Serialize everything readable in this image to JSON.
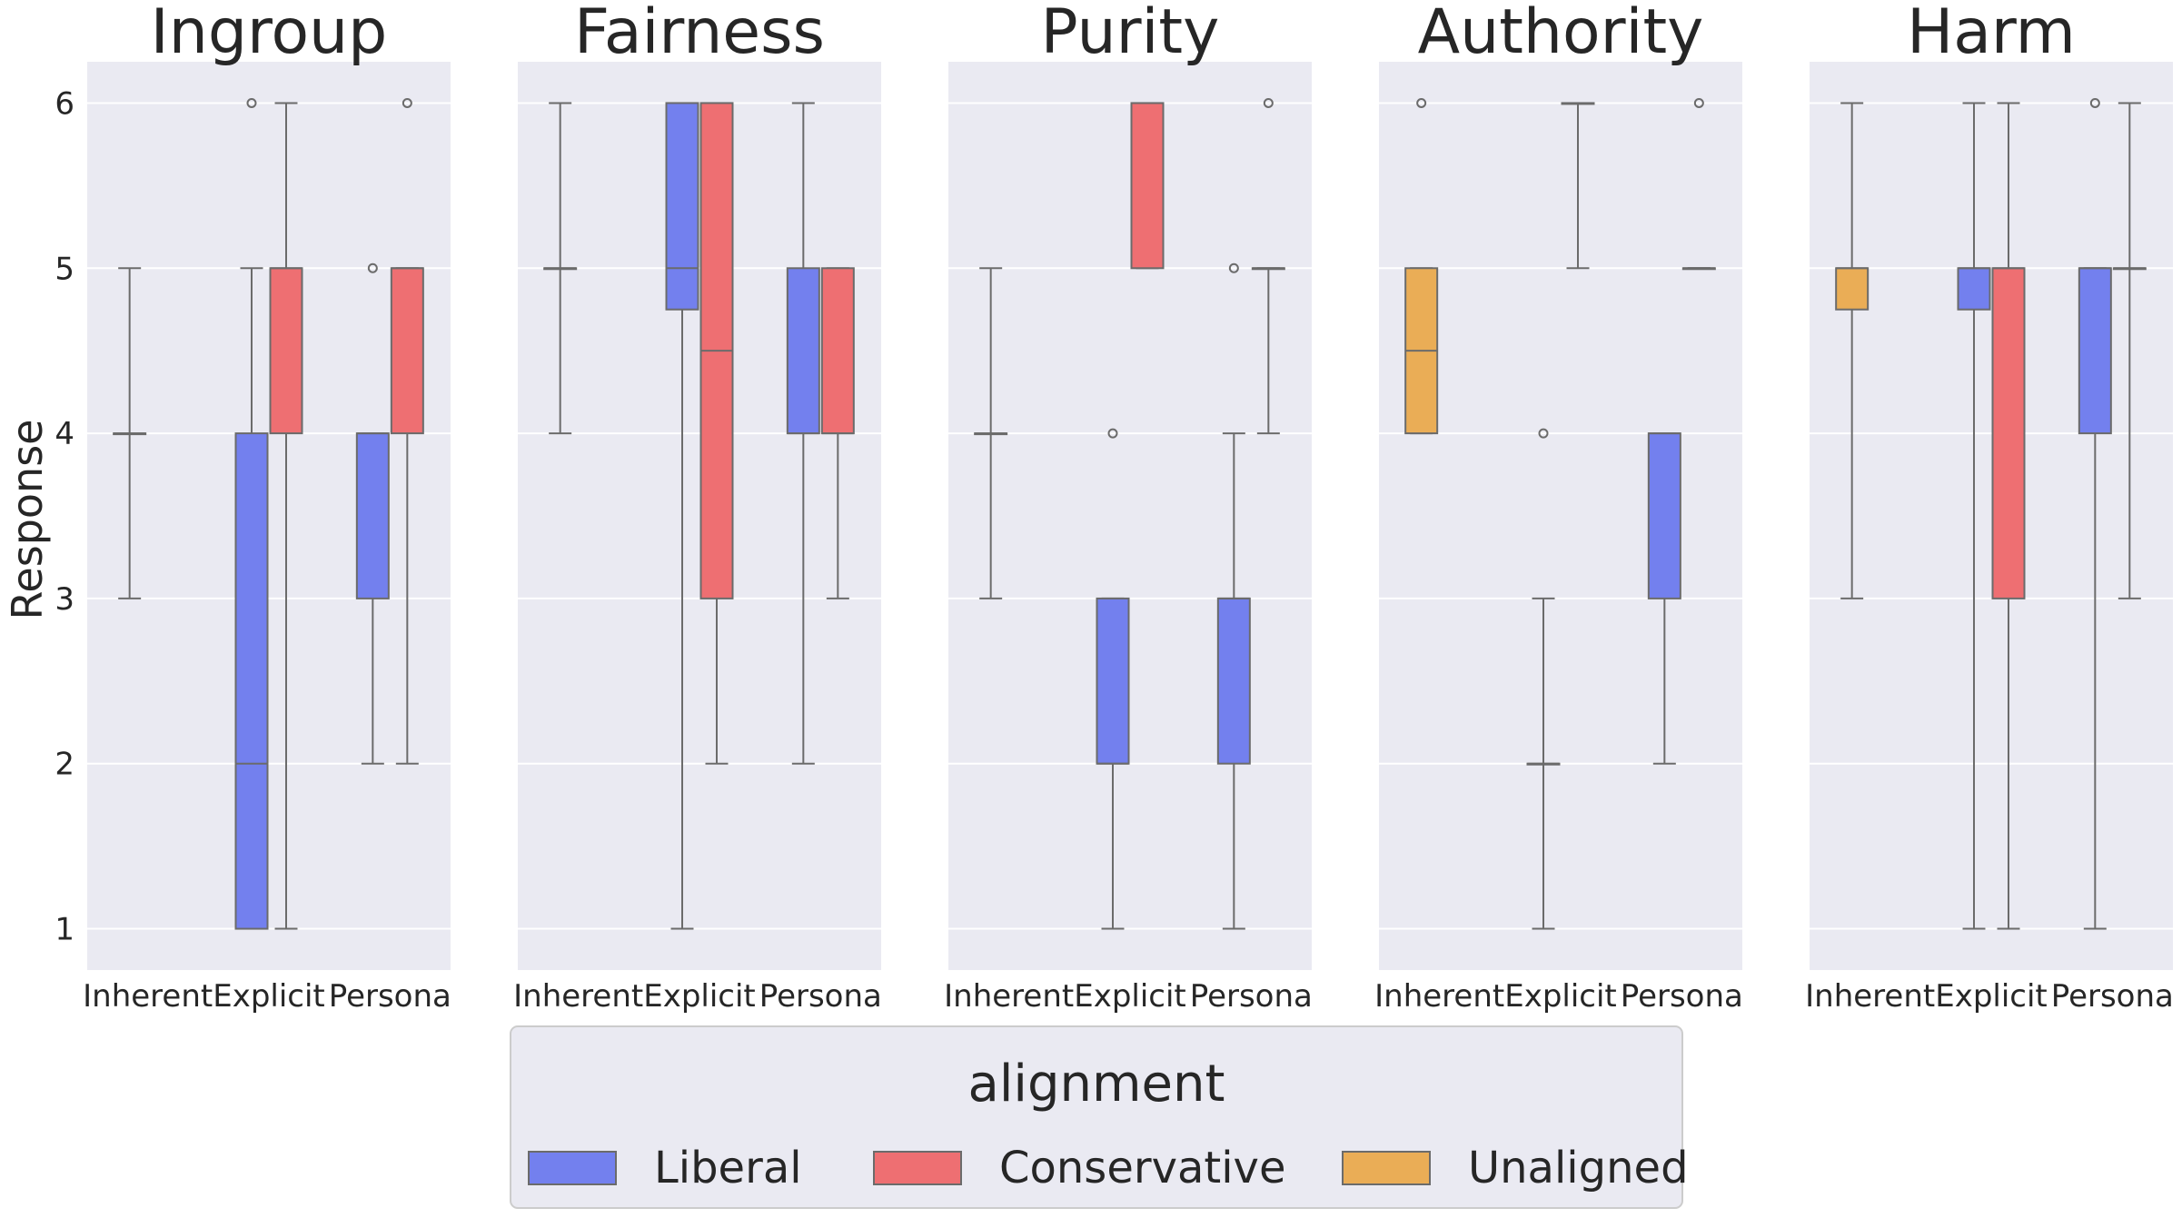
{
  "chart_data": {
    "type": "box",
    "ylabel": "Response",
    "ylim": [
      0.75,
      6.25
    ],
    "yticks": [
      1,
      2,
      3,
      4,
      5,
      6
    ],
    "categories": [
      "Inherent",
      "Explicit",
      "Persona"
    ],
    "legend": {
      "title": "alignment",
      "placement": "bottom-center",
      "entries": [
        {
          "name": "Liberal",
          "color": "#7380ee"
        },
        {
          "name": "Conservative",
          "color": "#ee6f72"
        },
        {
          "name": "Unaligned",
          "color": "#eaad56"
        }
      ]
    },
    "panels": [
      {
        "title": "Ingroup",
        "boxes": [
          {
            "category": "Inherent",
            "series": "Unaligned",
            "q1": 4,
            "median": 4,
            "q3": 4,
            "whislo": 3,
            "whishi": 5,
            "fliers": []
          },
          {
            "category": "Explicit",
            "series": "Liberal",
            "q1": 1,
            "median": 2,
            "q3": 4,
            "whislo": 1,
            "whishi": 5,
            "fliers": [
              6
            ]
          },
          {
            "category": "Explicit",
            "series": "Conservative",
            "q1": 4,
            "median": 5,
            "q3": 5,
            "whislo": 1,
            "whishi": 6,
            "fliers": []
          },
          {
            "category": "Persona",
            "series": "Liberal",
            "q1": 3,
            "median": 4,
            "q3": 4,
            "whislo": 2,
            "whishi": 4,
            "fliers": [
              5
            ]
          },
          {
            "category": "Persona",
            "series": "Conservative",
            "q1": 4,
            "median": 5,
            "q3": 5,
            "whislo": 2,
            "whishi": 5,
            "fliers": [
              6
            ]
          }
        ]
      },
      {
        "title": "Fairness",
        "boxes": [
          {
            "category": "Inherent",
            "series": "Unaligned",
            "q1": 5,
            "median": 5,
            "q3": 5,
            "whislo": 4,
            "whishi": 6,
            "fliers": []
          },
          {
            "category": "Explicit",
            "series": "Liberal",
            "q1": 4.75,
            "median": 5,
            "q3": 6,
            "whislo": 1,
            "whishi": 6,
            "fliers": []
          },
          {
            "category": "Explicit",
            "series": "Conservative",
            "q1": 3,
            "median": 4.5,
            "q3": 6,
            "whislo": 2,
            "whishi": 6,
            "fliers": []
          },
          {
            "category": "Persona",
            "series": "Liberal",
            "q1": 4,
            "median": 4,
            "q3": 5,
            "whislo": 2,
            "whishi": 6,
            "fliers": []
          },
          {
            "category": "Persona",
            "series": "Conservative",
            "q1": 4,
            "median": 4,
            "q3": 5,
            "whislo": 3,
            "whishi": 5,
            "fliers": []
          }
        ]
      },
      {
        "title": "Purity",
        "boxes": [
          {
            "category": "Inherent",
            "series": "Unaligned",
            "q1": 4,
            "median": 4,
            "q3": 4,
            "whislo": 3,
            "whishi": 5,
            "fliers": []
          },
          {
            "category": "Explicit",
            "series": "Liberal",
            "q1": 2,
            "median": 2,
            "q3": 3,
            "whislo": 1,
            "whishi": 3,
            "fliers": [
              4
            ]
          },
          {
            "category": "Explicit",
            "series": "Conservative",
            "q1": 5,
            "median": 6,
            "q3": 6,
            "whislo": 5,
            "whishi": 6,
            "fliers": []
          },
          {
            "category": "Persona",
            "series": "Liberal",
            "q1": 2,
            "median": 3,
            "q3": 3,
            "whislo": 1,
            "whishi": 4,
            "fliers": [
              5
            ]
          },
          {
            "category": "Persona",
            "series": "Conservative",
            "q1": 5,
            "median": 5,
            "q3": 5,
            "whislo": 4,
            "whishi": 5,
            "fliers": [
              6
            ]
          }
        ]
      },
      {
        "title": "Authority",
        "boxes": [
          {
            "category": "Inherent",
            "series": "Unaligned",
            "q1": 4,
            "median": 4.5,
            "q3": 5,
            "whislo": 4,
            "whishi": 5,
            "fliers": [
              6
            ]
          },
          {
            "category": "Explicit",
            "series": "Liberal",
            "q1": 2,
            "median": 2,
            "q3": 2,
            "whislo": 1,
            "whishi": 3,
            "fliers": [
              4
            ]
          },
          {
            "category": "Explicit",
            "series": "Conservative",
            "q1": 6,
            "median": 6,
            "q3": 6,
            "whislo": 5,
            "whishi": 6,
            "fliers": []
          },
          {
            "category": "Persona",
            "series": "Liberal",
            "q1": 3,
            "median": 4,
            "q3": 4,
            "whislo": 2,
            "whishi": 4,
            "fliers": []
          },
          {
            "category": "Persona",
            "series": "Conservative",
            "q1": 5,
            "median": 5,
            "q3": 5,
            "whislo": 5,
            "whishi": 5,
            "fliers": [
              6
            ]
          }
        ]
      },
      {
        "title": "Harm",
        "boxes": [
          {
            "category": "Inherent",
            "series": "Unaligned",
            "q1": 4.75,
            "median": 5,
            "q3": 5,
            "whislo": 3,
            "whishi": 6,
            "fliers": []
          },
          {
            "category": "Explicit",
            "series": "Liberal",
            "q1": 4.75,
            "median": 5,
            "q3": 5,
            "whislo": 1,
            "whishi": 6,
            "fliers": []
          },
          {
            "category": "Explicit",
            "series": "Conservative",
            "q1": 3,
            "median": 5,
            "q3": 5,
            "whislo": 1,
            "whishi": 6,
            "fliers": []
          },
          {
            "category": "Persona",
            "series": "Liberal",
            "q1": 4,
            "median": 5,
            "q3": 5,
            "whislo": 1,
            "whishi": 5,
            "fliers": [
              6
            ]
          },
          {
            "category": "Persona",
            "series": "Conservative",
            "q1": 5,
            "median": 5,
            "q3": 5,
            "whislo": 3,
            "whishi": 6,
            "fliers": []
          }
        ]
      }
    ]
  }
}
